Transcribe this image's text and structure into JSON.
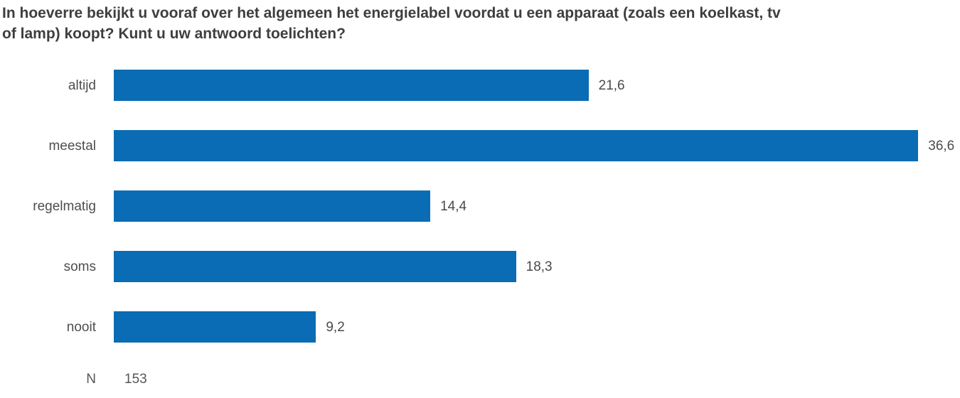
{
  "chart_data": {
    "type": "bar",
    "orientation": "horizontal",
    "title": "In hoeverre bekijkt u vooraf over het algemeen het energielabel voordat u een apparaat (zoals een koelkast, tv of lamp) koopt? Kunt u uw antwoord toelichten?",
    "categories": [
      "altijd",
      "meestal",
      "regelmatig",
      "soms",
      "nooit"
    ],
    "values": [
      21.6,
      36.6,
      14.4,
      18.3,
      9.2
    ],
    "value_labels": [
      "21,6",
      "36,6",
      "14,4",
      "18,3",
      "9,2"
    ],
    "xlabel": "",
    "ylabel": "",
    "xlim": [
      0,
      38.5
    ],
    "grid": false,
    "legend": null,
    "bar_color": "#0a6cb4",
    "n_label": "N",
    "n_value": "153"
  },
  "colors": {
    "title_text": "#3e3e3e",
    "label_text": "#4e4e50",
    "value_text": "#4a4a4c",
    "n_text": "#565658",
    "background": "#ffffff",
    "bar": "#0a6cb4"
  }
}
